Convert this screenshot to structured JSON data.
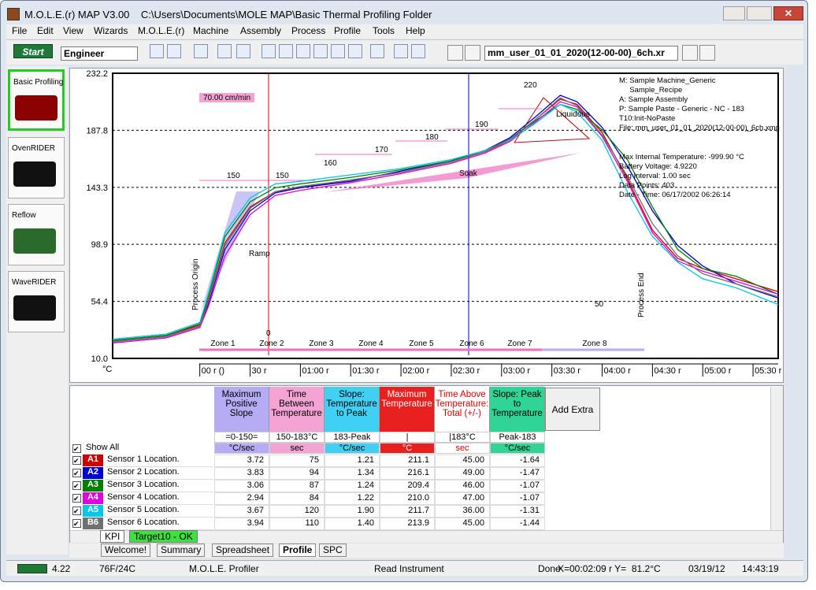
{
  "window": {
    "title": "M.O.L.E.(r) MAP V3.00    C:\\Users\\Documents\\MOLE MAP\\Basic Thermal Profiling Folder"
  },
  "menu": [
    "File",
    "Edit",
    "View",
    "Wizards",
    "M.O.L.E.(r)",
    "Machine",
    "Assembly",
    "Process",
    "Profile",
    "Tools",
    "Help"
  ],
  "toolbar": {
    "start": "Start",
    "user": "Engineer",
    "file": "mm_user_01_01_2020(12-00-00)_6ch.xr"
  },
  "sidebar": [
    "Basic Profiling",
    "OvenRIDER",
    "Reflow",
    "WaveRIDER"
  ],
  "chart_data": {
    "type": "line",
    "y_unit": "°C",
    "x": [
      -52,
      -20,
      0,
      5,
      15,
      30,
      45,
      60,
      90,
      120,
      150,
      170,
      185,
      200,
      215,
      225,
      240,
      255,
      270,
      285,
      300,
      320,
      345
    ],
    "xlim": [
      -52,
      345
    ],
    "xticks": [
      {
        "value": 0,
        "label": "00 r ()"
      },
      {
        "value": 30,
        "label": "30 r"
      },
      {
        "value": 60,
        "label": "01:00 r"
      },
      {
        "value": 90,
        "label": "01:30 r"
      },
      {
        "value": 120,
        "label": "02:00 r"
      },
      {
        "value": 150,
        "label": "02:30 r"
      },
      {
        "value": 180,
        "label": "03:00 r"
      },
      {
        "value": 210,
        "label": "03:30 r"
      },
      {
        "value": 240,
        "label": "04:00 r"
      },
      {
        "value": 270,
        "label": "04:30 r"
      },
      {
        "value": 300,
        "label": "05:00 r"
      },
      {
        "value": 330,
        "label": "05:30 r"
      }
    ],
    "ylim": [
      10.0,
      232.2
    ],
    "yticks": [
      {
        "value": 10.0,
        "label": "10.0"
      },
      54.4,
      98.9,
      143.3,
      187.8,
      232.2
    ],
    "grid": true,
    "series": [
      {
        "name": "A1",
        "color": "#d00000",
        "values": [
          24,
          28,
          36,
          55,
          100,
          128,
          140,
          143,
          149,
          155,
          163,
          171,
          180,
          196,
          212,
          208,
          186,
          150,
          110,
          88,
          80,
          72,
          62
        ]
      },
      {
        "name": "A2",
        "color": "#0000d0",
        "values": [
          23,
          27,
          35,
          52,
          95,
          125,
          139,
          143,
          148,
          156,
          164,
          172,
          182,
          198,
          215,
          210,
          190,
          160,
          125,
          98,
          82,
          68,
          57
        ]
      },
      {
        "name": "A3",
        "color": "#008000",
        "values": [
          24,
          28,
          37,
          58,
          105,
          132,
          143,
          146,
          151,
          157,
          164,
          172,
          181,
          195,
          208,
          204,
          188,
          165,
          128,
          95,
          80,
          74,
          60
        ]
      },
      {
        "name": "A4",
        "color": "#e000e0",
        "values": [
          22,
          26,
          34,
          50,
          90,
          122,
          137,
          141,
          147,
          154,
          162,
          170,
          179,
          194,
          210,
          206,
          183,
          148,
          108,
          86,
          78,
          70,
          60
        ]
      },
      {
        "name": "A5",
        "color": "#00c8e8",
        "values": [
          25,
          29,
          38,
          60,
          108,
          135,
          146,
          148,
          153,
          158,
          165,
          172,
          180,
          193,
          208,
          202,
          180,
          140,
          105,
          85,
          72,
          65,
          52
        ]
      },
      {
        "name": "B6",
        "color": "#707070",
        "values": [
          23,
          27,
          35,
          54,
          98,
          127,
          140,
          144,
          149,
          155,
          163,
          171,
          181,
          196,
          213,
          207,
          184,
          152,
          115,
          90,
          76,
          68,
          58
        ]
      }
    ],
    "annotations": [
      "70.00 cm/min",
      "150",
      "150",
      "160",
      "170",
      "180",
      "190",
      "220",
      "Liquidous",
      "Soak",
      "Ramp",
      "50",
      "0",
      "Process Origin",
      "Process End"
    ],
    "zones": [
      "Zone 1",
      "Zone 2",
      "Zone 3",
      "Zone 4",
      "Zone 5",
      "Zone 6",
      "Zone 7",
      "Zone 8"
    ],
    "info": [
      "M: Sample Machine_Generic",
      "     Sample_Recipe",
      "A: Sample Assembly",
      "P: Sample Paste - Generic - NC - 183",
      "T10:Init-NoPaste",
      "File: mm_user_01_01_2020(12-00-00)_6ch.xmg"
    ],
    "info2": [
      "Max Internal Temperature: -999.90 °C",
      "Battery Voltage: 4.9220",
      "Log Interval: 1.00 sec",
      "Data Points: 403",
      "Date - Time: 06/17/2002 06:26:14"
    ]
  },
  "table": {
    "show_all": "Show All",
    "add_extra": "Add Extra",
    "columns": [
      {
        "header": "Maximum Positive Slope",
        "range": "=0-150=",
        "unit": "°C/sec",
        "color": "#b4acf4",
        "text_color": "#000000"
      },
      {
        "header": "Time Between Temperature",
        "range": "150-183°C",
        "unit": "sec",
        "color": "#f4a4d4",
        "text_color": "#000000"
      },
      {
        "header": "Slope: Temperature to Peak",
        "range": "183-Peak",
        "unit": "°C/sec",
        "color": "#40d0f4",
        "text_color": "#000000"
      },
      {
        "header": "Maximum Temperature",
        "range": "|",
        "unit": "°C",
        "color": "#e82020",
        "text_color": "#ffffff"
      },
      {
        "header": "Time Above Temperature: Total (+/-)",
        "range": "|183°C",
        "unit": "sec",
        "color": "#ffffff",
        "text_color": "#e00000"
      },
      {
        "header": "Slope: Peak to Temperature",
        "range": "Peak-183",
        "unit": "°C/sec",
        "color": "#30d494",
        "text_color": "#000000"
      }
    ],
    "rows": [
      {
        "id": "A1",
        "name": "Sensor 1 Location.",
        "values": [
          "3.72",
          "75",
          "1.21",
          "211.1",
          "45.00",
          "-1.64"
        ]
      },
      {
        "id": "A2",
        "name": "Sensor 2 Location.",
        "values": [
          "3.83",
          "94",
          "1.34",
          "216.1",
          "49.00",
          "-1.47"
        ]
      },
      {
        "id": "A3",
        "name": "Sensor 3 Location.",
        "values": [
          "3.06",
          "87",
          "1.24",
          "209.4",
          "46.00",
          "-1.07"
        ]
      },
      {
        "id": "A4",
        "name": "Sensor 4 Location.",
        "values": [
          "2.94",
          "84",
          "1.22",
          "210.0",
          "47.00",
          "-1.07"
        ]
      },
      {
        "id": "A5",
        "name": "Sensor 5 Location.",
        "values": [
          "3.67",
          "120",
          "1.90",
          "211.7",
          "36.00",
          "-1.31"
        ]
      },
      {
        "id": "B6",
        "name": "Sensor 6 Location.",
        "values": [
          "3.94",
          "110",
          "1.40",
          "213.9",
          "45.00",
          "-1.44"
        ]
      }
    ]
  },
  "tabs": {
    "lower": [
      "KPI",
      "Target10 - OK"
    ],
    "sheets": [
      "Welcome!",
      "Summary",
      "Spreadsheet",
      "Profile",
      "SPC"
    ]
  },
  "status": {
    "battery": "4.22",
    "temp": "76F/24C",
    "app": "M.O.L.E. Profiler",
    "action": "Read Instrument",
    "state": "Done",
    "cursor": "X=00:02:09 r Y=  81.2°C",
    "date": "03/19/12",
    "time": "14:43:19"
  }
}
